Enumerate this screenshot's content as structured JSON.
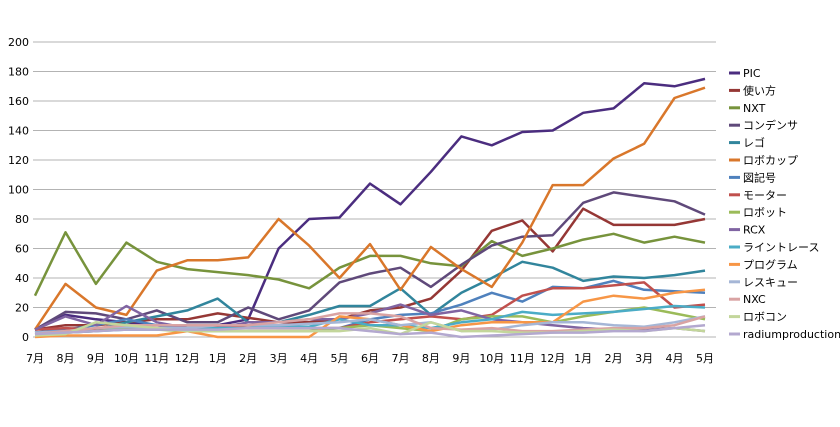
{
  "chart_data": {
    "type": "line",
    "title": "",
    "xlabel": "",
    "ylabel": "",
    "ylim": [
      0,
      200
    ],
    "yticks": [
      0,
      20,
      40,
      60,
      80,
      100,
      120,
      140,
      160,
      180,
      200
    ],
    "grid": true,
    "legend_position": "right",
    "categories": [
      "7月",
      "8月",
      "9月",
      "10月",
      "11月",
      "12月",
      "1月",
      "2月",
      "3月",
      "4月",
      "5月",
      "6月",
      "7月",
      "8月",
      "9月",
      "10月",
      "11月",
      "12月",
      "1月",
      "2月",
      "3月",
      "4月",
      "5月"
    ],
    "series": [
      {
        "name": "PIC",
        "color": "#4b2d7f",
        "values": [
          5,
          15,
          12,
          10,
          8,
          5,
          8,
          12,
          60,
          80,
          81,
          104,
          90,
          112,
          136,
          130,
          139,
          140,
          152,
          155,
          172,
          170,
          175
        ]
      },
      {
        "name": "使い方",
        "color": "#953735",
        "values": [
          5,
          8,
          8,
          10,
          12,
          12,
          16,
          13,
          10,
          10,
          12,
          18,
          20,
          26,
          45,
          72,
          79,
          58,
          87,
          76,
          76,
          76,
          80
        ]
      },
      {
        "name": "NXT",
        "color": "#77933c",
        "values": [
          28,
          71,
          36,
          64,
          51,
          46,
          44,
          42,
          39,
          33,
          47,
          55,
          55,
          50,
          48,
          65,
          55,
          60,
          66,
          70,
          64,
          68,
          64
        ]
      },
      {
        "name": "コンデンサ",
        "color": "#5f497a",
        "values": [
          5,
          17,
          16,
          12,
          18,
          10,
          10,
          20,
          12,
          18,
          37,
          43,
          47,
          34,
          49,
          62,
          68,
          69,
          91,
          98,
          95,
          92,
          83
        ]
      },
      {
        "name": "レゴ",
        "color": "#31859c",
        "values": [
          3,
          5,
          5,
          10,
          14,
          18,
          26,
          10,
          10,
          15,
          21,
          21,
          33,
          15,
          30,
          40,
          51,
          47,
          38,
          41,
          40,
          42,
          45
        ]
      },
      {
        "name": "ロボカップ",
        "color": "#d9772b",
        "values": [
          5,
          36,
          20,
          15,
          45,
          52,
          52,
          54,
          80,
          62,
          40,
          63,
          32,
          61,
          46,
          34,
          64,
          103,
          103,
          121,
          131,
          162,
          169
        ]
      },
      {
        "name": "図記号",
        "color": "#4f81bd",
        "values": [
          3,
          5,
          8,
          12,
          8,
          6,
          6,
          8,
          6,
          6,
          6,
          12,
          15,
          16,
          22,
          30,
          24,
          34,
          33,
          38,
          32,
          31,
          30
        ]
      },
      {
        "name": "モーター",
        "color": "#c0504d",
        "values": [
          5,
          6,
          5,
          6,
          6,
          5,
          7,
          6,
          6,
          6,
          6,
          10,
          12,
          14,
          12,
          15,
          28,
          33,
          33,
          35,
          37,
          20,
          22
        ]
      },
      {
        "name": "ロボット",
        "color": "#9bbb59",
        "values": [
          2,
          3,
          4,
          6,
          5,
          4,
          4,
          4,
          4,
          4,
          6,
          8,
          6,
          4,
          12,
          14,
          14,
          10,
          14,
          17,
          20,
          16,
          12
        ]
      },
      {
        "name": "RCX",
        "color": "#8064a2",
        "values": [
          5,
          14,
          8,
          21,
          10,
          6,
          6,
          10,
          10,
          12,
          12,
          16,
          22,
          15,
          18,
          12,
          10,
          8,
          6,
          5,
          5,
          6,
          4
        ]
      },
      {
        "name": "ライントレース",
        "color": "#4bacc6",
        "values": [
          2,
          3,
          4,
          5,
          5,
          6,
          6,
          6,
          7,
          7,
          12,
          8,
          8,
          6,
          10,
          12,
          17,
          15,
          16,
          17,
          19,
          21,
          20
        ]
      },
      {
        "name": "プログラム",
        "color": "#f79646",
        "values": [
          0,
          1,
          1,
          1,
          1,
          4,
          0,
          0,
          0,
          0,
          14,
          12,
          8,
          4,
          8,
          10,
          10,
          10,
          24,
          28,
          26,
          30,
          32
        ]
      },
      {
        "name": "レスキュー",
        "color": "#a5b6d6",
        "values": [
          3,
          4,
          6,
          7,
          6,
          6,
          8,
          8,
          8,
          9,
          10,
          12,
          8,
          10,
          4,
          5,
          8,
          10,
          10,
          8,
          7,
          10,
          14
        ]
      },
      {
        "name": "NXC",
        "color": "#d9a3a3",
        "values": [
          2,
          4,
          6,
          8,
          8,
          8,
          8,
          8,
          10,
          12,
          16,
          16,
          14,
          6,
          5,
          6,
          4,
          4,
          5,
          6,
          6,
          8,
          14
        ]
      },
      {
        "name": "ロボコン",
        "color": "#c3d69b",
        "values": [
          1,
          2,
          10,
          8,
          6,
          4,
          4,
          4,
          4,
          4,
          4,
          6,
          2,
          10,
          4,
          4,
          3,
          3,
          4,
          5,
          4,
          6,
          4
        ]
      },
      {
        "name": "radiumproduction",
        "color": "#b3a8cf",
        "values": [
          2,
          3,
          4,
          5,
          5,
          5,
          5,
          6,
          6,
          6,
          6,
          4,
          2,
          3,
          0,
          1,
          2,
          3,
          3,
          4,
          4,
          6,
          8
        ]
      }
    ]
  }
}
